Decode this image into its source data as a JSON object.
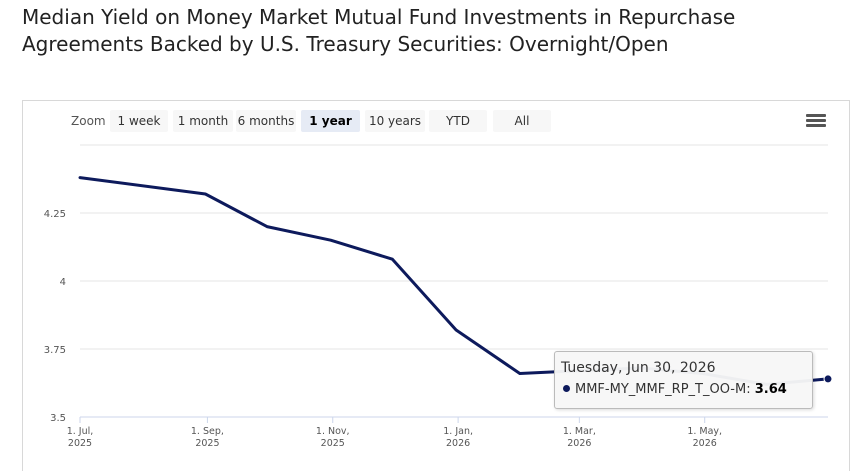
{
  "page": {
    "title": "Median Yield on Money Market Mutual Fund Investments in Repurchase Agreements Backed by U.S. Treasury Securities: Overnight/Open"
  },
  "range_selector": {
    "label": "Zoom",
    "buttons": [
      "1 week",
      "1 month",
      "6 months",
      "1 year",
      "10 years",
      "YTD",
      "All"
    ],
    "selected": "1 year"
  },
  "menu": {
    "icon": "hamburger-menu-icon"
  },
  "tooltip": {
    "date": "Tuesday, Jun 30, 2026",
    "series": "MMF-MY_MMF_RP_T_OO-M",
    "value": "3.64"
  },
  "colors": {
    "series": "#0d1a5c",
    "grid": "#e6e6e6"
  },
  "chart_data": {
    "type": "line",
    "title": "Median Yield on Money Market Mutual Fund Investments in Repurchase Agreements Backed by U.S. Treasury Securities: Overnight/Open",
    "x": [
      "2025-07-01",
      "2025-08-31",
      "2025-09-30",
      "2025-10-31",
      "2025-11-30",
      "2025-12-31",
      "2026-01-31",
      "2026-02-28",
      "2026-03-31",
      "2026-04-30",
      "2026-05-31",
      "2026-06-30"
    ],
    "series": [
      {
        "name": "MMF-MY_MMF_RP_T_OO-M",
        "values": [
          4.38,
          4.32,
          4.2,
          4.15,
          4.08,
          3.82,
          3.66,
          3.67,
          3.68,
          3.66,
          3.62,
          3.64
        ]
      }
    ],
    "x_ticks": [
      {
        "date": "2025-07-01",
        "label": [
          "1. Jul,",
          "2025"
        ]
      },
      {
        "date": "2025-09-01",
        "label": [
          "1. Sep,",
          "2025"
        ]
      },
      {
        "date": "2025-11-01",
        "label": [
          "1. Nov,",
          "2025"
        ]
      },
      {
        "date": "2026-01-01",
        "label": [
          "1. Jan,",
          "2026"
        ]
      },
      {
        "date": "2026-03-01",
        "label": [
          "1. Mar,",
          "2026"
        ]
      },
      {
        "date": "2026-05-01",
        "label": [
          "1. May,",
          "2026"
        ]
      }
    ],
    "y_ticks": [
      3.5,
      3.75,
      4,
      4.25
    ],
    "y_tick_labels": [
      "3.5",
      "3.75",
      "4",
      "4.25"
    ],
    "xlim": [
      "2025-07-01",
      "2026-06-30"
    ],
    "ylim": [
      3.5,
      4.5
    ],
    "grid": true,
    "legend": "none"
  }
}
